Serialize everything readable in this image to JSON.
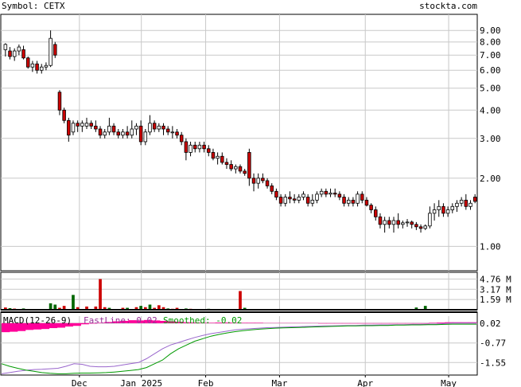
{
  "header": {
    "symbol_label": "Symbol: CETX",
    "site": "stockta.com"
  },
  "colors": {
    "grid": "#c8c8c8",
    "up_fill": "#ffffff",
    "down_fill": "#cc0000",
    "vol_up": "#006600",
    "vol_down": "#cc0000",
    "macd_hist": "#ff0099",
    "fast_line": "#9966cc",
    "smooth_line": "#009900",
    "label_fast": "#993399",
    "label_smooth": "#009900"
  },
  "chart_data": [
    {
      "type": "candlestick",
      "panel": "price",
      "scale": "log",
      "ylim": [
        0.78,
        10.6
      ],
      "y_ticks": [
        {
          "value": 9.0,
          "label": "9.00"
        },
        {
          "value": 8.0,
          "label": "8.00"
        },
        {
          "value": 7.0,
          "label": "7.00"
        },
        {
          "value": 6.0,
          "label": "6.00"
        },
        {
          "value": 5.0,
          "label": "5.00"
        },
        {
          "value": 4.0,
          "label": "4.00"
        },
        {
          "value": 3.0,
          "label": "3.00"
        },
        {
          "value": 2.0,
          "label": "2.00"
        },
        {
          "value": 1.0,
          "label": "1.00"
        }
      ],
      "x_ticks": [
        "Dec",
        "Jan 2025",
        "Feb",
        "Mar",
        "Apr",
        "May"
      ],
      "ohlc": [
        [
          7.4,
          7.9,
          6.9,
          7.8
        ],
        [
          7.3,
          7.6,
          6.7,
          6.9
        ],
        [
          6.9,
          7.5,
          6.6,
          7.3
        ],
        [
          7.3,
          7.8,
          7.0,
          7.6
        ],
        [
          7.4,
          7.7,
          6.7,
          6.8
        ],
        [
          6.8,
          6.9,
          6.1,
          6.2
        ],
        [
          6.2,
          6.6,
          5.9,
          6.4
        ],
        [
          6.4,
          6.6,
          5.8,
          6.0
        ],
        [
          6.0,
          6.4,
          5.8,
          6.2
        ],
        [
          6.2,
          6.5,
          6.0,
          6.3
        ],
        [
          6.3,
          9.0,
          6.2,
          8.3
        ],
        [
          7.8,
          8.0,
          6.8,
          7.0
        ],
        [
          4.8,
          4.9,
          3.8,
          4.0
        ],
        [
          4.0,
          4.1,
          3.5,
          3.6
        ],
        [
          3.6,
          3.7,
          2.9,
          3.1
        ],
        [
          3.2,
          3.6,
          3.1,
          3.5
        ],
        [
          3.5,
          3.6,
          3.2,
          3.4
        ],
        [
          3.4,
          3.6,
          3.2,
          3.5
        ],
        [
          3.4,
          3.7,
          3.3,
          3.5
        ],
        [
          3.5,
          3.6,
          3.3,
          3.4
        ],
        [
          3.4,
          3.6,
          3.2,
          3.3
        ],
        [
          3.3,
          3.4,
          3.0,
          3.1
        ],
        [
          3.1,
          3.3,
          3.0,
          3.2
        ],
        [
          3.2,
          3.7,
          3.1,
          3.4
        ],
        [
          3.4,
          3.5,
          3.1,
          3.2
        ],
        [
          3.2,
          3.3,
          3.0,
          3.1
        ],
        [
          3.1,
          3.3,
          3.0,
          3.2
        ],
        [
          3.2,
          3.4,
          3.0,
          3.1
        ],
        [
          3.1,
          3.6,
          3.0,
          3.3
        ],
        [
          3.3,
          3.5,
          3.1,
          3.4
        ],
        [
          3.4,
          3.6,
          2.8,
          2.9
        ],
        [
          2.9,
          3.3,
          2.8,
          3.2
        ],
        [
          3.2,
          3.8,
          3.1,
          3.5
        ],
        [
          3.5,
          3.6,
          3.2,
          3.3
        ],
        [
          3.3,
          3.5,
          3.2,
          3.4
        ],
        [
          3.4,
          3.5,
          3.1,
          3.3
        ],
        [
          3.3,
          3.4,
          3.1,
          3.2
        ],
        [
          3.2,
          3.4,
          3.0,
          3.2
        ],
        [
          3.2,
          3.3,
          3.0,
          3.1
        ],
        [
          3.1,
          3.2,
          2.8,
          2.9
        ],
        [
          2.9,
          3.0,
          2.4,
          2.6
        ],
        [
          2.6,
          2.9,
          2.5,
          2.8
        ],
        [
          2.8,
          2.9,
          2.6,
          2.7
        ],
        [
          2.7,
          2.9,
          2.6,
          2.8
        ],
        [
          2.8,
          2.9,
          2.6,
          2.7
        ],
        [
          2.7,
          2.8,
          2.5,
          2.6
        ],
        [
          2.6,
          2.7,
          2.4,
          2.45
        ],
        [
          2.45,
          2.6,
          2.3,
          2.5
        ],
        [
          2.5,
          2.6,
          2.3,
          2.35
        ],
        [
          2.35,
          2.45,
          2.2,
          2.3
        ],
        [
          2.3,
          2.4,
          2.15,
          2.2
        ],
        [
          2.2,
          2.3,
          2.1,
          2.25
        ],
        [
          2.25,
          2.3,
          2.1,
          2.15
        ],
        [
          2.15,
          2.2,
          2.05,
          2.1
        ],
        [
          2.6,
          2.7,
          1.85,
          2.0
        ],
        [
          2.0,
          2.1,
          1.75,
          1.9
        ],
        [
          1.9,
          2.1,
          1.8,
          2.0
        ],
        [
          2.0,
          2.1,
          1.9,
          1.95
        ],
        [
          1.95,
          2.0,
          1.8,
          1.85
        ],
        [
          1.85,
          1.9,
          1.7,
          1.75
        ],
        [
          1.75,
          1.8,
          1.6,
          1.65
        ],
        [
          1.65,
          1.7,
          1.5,
          1.55
        ],
        [
          1.55,
          1.7,
          1.5,
          1.65
        ],
        [
          1.65,
          1.75,
          1.55,
          1.62
        ],
        [
          1.62,
          1.7,
          1.55,
          1.6
        ],
        [
          1.6,
          1.7,
          1.55,
          1.65
        ],
        [
          1.65,
          1.75,
          1.6,
          1.7
        ],
        [
          1.65,
          1.7,
          1.5,
          1.55
        ],
        [
          1.55,
          1.7,
          1.5,
          1.6
        ],
        [
          1.6,
          1.75,
          1.55,
          1.7
        ],
        [
          1.7,
          1.8,
          1.65,
          1.75
        ],
        [
          1.75,
          1.8,
          1.65,
          1.7
        ],
        [
          1.7,
          1.8,
          1.65,
          1.72
        ],
        [
          1.72,
          1.8,
          1.65,
          1.7
        ],
        [
          1.7,
          1.75,
          1.6,
          1.65
        ],
        [
          1.65,
          1.7,
          1.5,
          1.55
        ],
        [
          1.55,
          1.65,
          1.5,
          1.6
        ],
        [
          1.6,
          1.65,
          1.5,
          1.55
        ],
        [
          1.55,
          1.75,
          1.5,
          1.7
        ],
        [
          1.7,
          1.75,
          1.55,
          1.6
        ],
        [
          1.6,
          1.65,
          1.5,
          1.52
        ],
        [
          1.52,
          1.55,
          1.4,
          1.45
        ],
        [
          1.45,
          1.5,
          1.3,
          1.35
        ],
        [
          1.35,
          1.4,
          1.2,
          1.25
        ],
        [
          1.25,
          1.35,
          1.15,
          1.3
        ],
        [
          1.3,
          1.35,
          1.2,
          1.25
        ],
        [
          1.25,
          1.35,
          1.15,
          1.3
        ],
        [
          1.3,
          1.4,
          1.2,
          1.25
        ],
        [
          1.25,
          1.3,
          1.2,
          1.27
        ],
        [
          1.27,
          1.32,
          1.22,
          1.28
        ],
        [
          1.28,
          1.3,
          1.2,
          1.25
        ],
        [
          1.25,
          1.28,
          1.18,
          1.22
        ],
        [
          1.22,
          1.25,
          1.15,
          1.2
        ],
        [
          1.2,
          1.25,
          1.18,
          1.23
        ],
        [
          1.23,
          1.5,
          1.2,
          1.4
        ],
        [
          1.4,
          1.55,
          1.3,
          1.45
        ],
        [
          1.45,
          1.6,
          1.35,
          1.5
        ],
        [
          1.5,
          1.55,
          1.35,
          1.4
        ],
        [
          1.4,
          1.5,
          1.35,
          1.45
        ],
        [
          1.45,
          1.55,
          1.4,
          1.5
        ],
        [
          1.5,
          1.6,
          1.42,
          1.55
        ],
        [
          1.55,
          1.65,
          1.5,
          1.6
        ],
        [
          1.6,
          1.7,
          1.45,
          1.5
        ],
        [
          1.5,
          1.6,
          1.45,
          1.55
        ],
        [
          1.65,
          1.7,
          1.55,
          1.58
        ]
      ]
    },
    {
      "type": "bar",
      "panel": "volume",
      "y_ticks": [
        {
          "value": 4.76,
          "label": "4.76 M"
        },
        {
          "value": 3.17,
          "label": "3.17 M"
        },
        {
          "value": 1.59,
          "label": "1.59 M"
        }
      ],
      "ylim": [
        0,
        5.8
      ],
      "bars": [
        {
          "i": 0,
          "v": 0.35,
          "dir": "down"
        },
        {
          "i": 1,
          "v": 0.25,
          "dir": "up"
        },
        {
          "i": 2,
          "v": 0.18,
          "dir": "down"
        },
        {
          "i": 4,
          "v": 0.2,
          "dir": "up"
        },
        {
          "i": 10,
          "v": 1.0,
          "dir": "up"
        },
        {
          "i": 11,
          "v": 0.5,
          "dir": "down"
        },
        {
          "i": 12,
          "v": 0.8,
          "dir": "up"
        },
        {
          "i": 13,
          "v": 0.3,
          "dir": "down"
        },
        {
          "i": 14,
          "v": 0.6,
          "dir": "down"
        },
        {
          "i": 16,
          "v": 2.3,
          "dir": "up"
        },
        {
          "i": 17,
          "v": 0.4,
          "dir": "down"
        },
        {
          "i": 19,
          "v": 0.5,
          "dir": "down"
        },
        {
          "i": 21,
          "v": 0.5,
          "dir": "down"
        },
        {
          "i": 22,
          "v": 4.76,
          "dir": "down"
        },
        {
          "i": 23,
          "v": 0.4,
          "dir": "down"
        },
        {
          "i": 24,
          "v": 0.3,
          "dir": "up"
        },
        {
          "i": 27,
          "v": 0.3,
          "dir": "down"
        },
        {
          "i": 28,
          "v": 0.3,
          "dir": "up"
        },
        {
          "i": 30,
          "v": 0.4,
          "dir": "down"
        },
        {
          "i": 31,
          "v": 0.6,
          "dir": "up"
        },
        {
          "i": 32,
          "v": 0.4,
          "dir": "down"
        },
        {
          "i": 34,
          "v": 0.8,
          "dir": "up"
        },
        {
          "i": 35,
          "v": 0.3,
          "dir": "down"
        },
        {
          "i": 36,
          "v": 0.7,
          "dir": "down"
        },
        {
          "i": 37,
          "v": 0.4,
          "dir": "down"
        },
        {
          "i": 38,
          "v": 0.2,
          "dir": "up"
        },
        {
          "i": 39,
          "v": 0.15,
          "dir": "down"
        },
        {
          "i": 40,
          "v": 0.3,
          "dir": "down"
        },
        {
          "i": 42,
          "v": 0.2,
          "dir": "up"
        },
        {
          "i": 43,
          "v": 0.15,
          "dir": "down"
        },
        {
          "i": 47,
          "v": 0.15,
          "dir": "up"
        },
        {
          "i": 54,
          "v": 2.9,
          "dir": "down"
        },
        {
          "i": 55,
          "v": 0.3,
          "dir": "up"
        },
        {
          "i": 95,
          "v": 0.35,
          "dir": "up"
        },
        {
          "i": 97,
          "v": 0.6,
          "dir": "up"
        }
      ]
    },
    {
      "type": "line",
      "panel": "macd",
      "title": "MACD(12-26-9)",
      "fast_label": "FastLine: 0.02",
      "smooth_label": "Smoothed: -0.02",
      "y_ticks": [
        {
          "value": 0.02,
          "label": "0.02"
        },
        {
          "value": -0.77,
          "label": "-0.77"
        },
        {
          "value": -1.55,
          "label": "-1.55"
        }
      ],
      "ylim": [
        -2.05,
        0.3
      ],
      "series": [
        {
          "name": "FastLine",
          "values": [
            -2.0,
            -1.95,
            -1.9,
            -1.86,
            -1.83,
            -1.82,
            -1.8,
            -1.78,
            -1.7,
            -1.6,
            -1.62,
            -1.7,
            -1.72,
            -1.72,
            -1.7,
            -1.65,
            -1.6,
            -1.55,
            -1.4,
            -1.2,
            -1.0,
            -0.85,
            -0.75,
            -0.65,
            -0.55,
            -0.47,
            -0.4,
            -0.35,
            -0.3,
            -0.25,
            -0.22,
            -0.2,
            -0.18,
            -0.16,
            -0.15,
            -0.14,
            -0.13,
            -0.12,
            -0.11,
            -0.1,
            -0.09,
            -0.09,
            -0.08,
            -0.07,
            -0.07,
            -0.06,
            -0.06,
            -0.05,
            -0.05,
            -0.04,
            -0.04,
            -0.03,
            -0.03,
            -0.02,
            -0.02,
            0.0,
            0.02,
            0.02,
            0.02,
            0.02
          ]
        },
        {
          "name": "Smoothed",
          "values": [
            -1.6,
            -1.7,
            -1.78,
            -1.85,
            -1.9,
            -1.95,
            -1.98,
            -2.0,
            -2.0,
            -1.98,
            -1.97,
            -1.97,
            -1.96,
            -1.95,
            -1.93,
            -1.9,
            -1.87,
            -1.83,
            -1.75,
            -1.6,
            -1.45,
            -1.2,
            -1.0,
            -0.85,
            -0.7,
            -0.6,
            -0.5,
            -0.43,
            -0.37,
            -0.32,
            -0.28,
            -0.25,
            -0.22,
            -0.2,
            -0.18,
            -0.17,
            -0.16,
            -0.15,
            -0.14,
            -0.13,
            -0.12,
            -0.11,
            -0.1,
            -0.09,
            -0.09,
            -0.08,
            -0.08,
            -0.07,
            -0.07,
            -0.06,
            -0.06,
            -0.05,
            -0.05,
            -0.04,
            -0.04,
            -0.03,
            -0.02,
            -0.02,
            -0.02,
            -0.02
          ]
        },
        {
          "name": "Histogram",
          "values": [
            -0.4,
            -0.38,
            -0.35,
            -0.3,
            -0.28,
            -0.26,
            -0.22,
            -0.2,
            -0.15,
            -0.12,
            -0.05,
            -0.02,
            0.02,
            0.05,
            0.08,
            0.1,
            0.13,
            0.12,
            0.14,
            0.12,
            0.1,
            0.08,
            0.06,
            0.04,
            0.03,
            0.02,
            0.02,
            0.03,
            0.03,
            0.02,
            0.02,
            0.02,
            0.02,
            0.01,
            0.01,
            0.01,
            0.01,
            0.01,
            0.01,
            0.01,
            0.0,
            0.0,
            0.0,
            0.0,
            0.0,
            0.0,
            0.0,
            0.0,
            0.0,
            0.0,
            0.0,
            0.0,
            0.0,
            0.0,
            0.02,
            0.03,
            0.04,
            0.04,
            0.04,
            0.04
          ]
        }
      ]
    }
  ]
}
